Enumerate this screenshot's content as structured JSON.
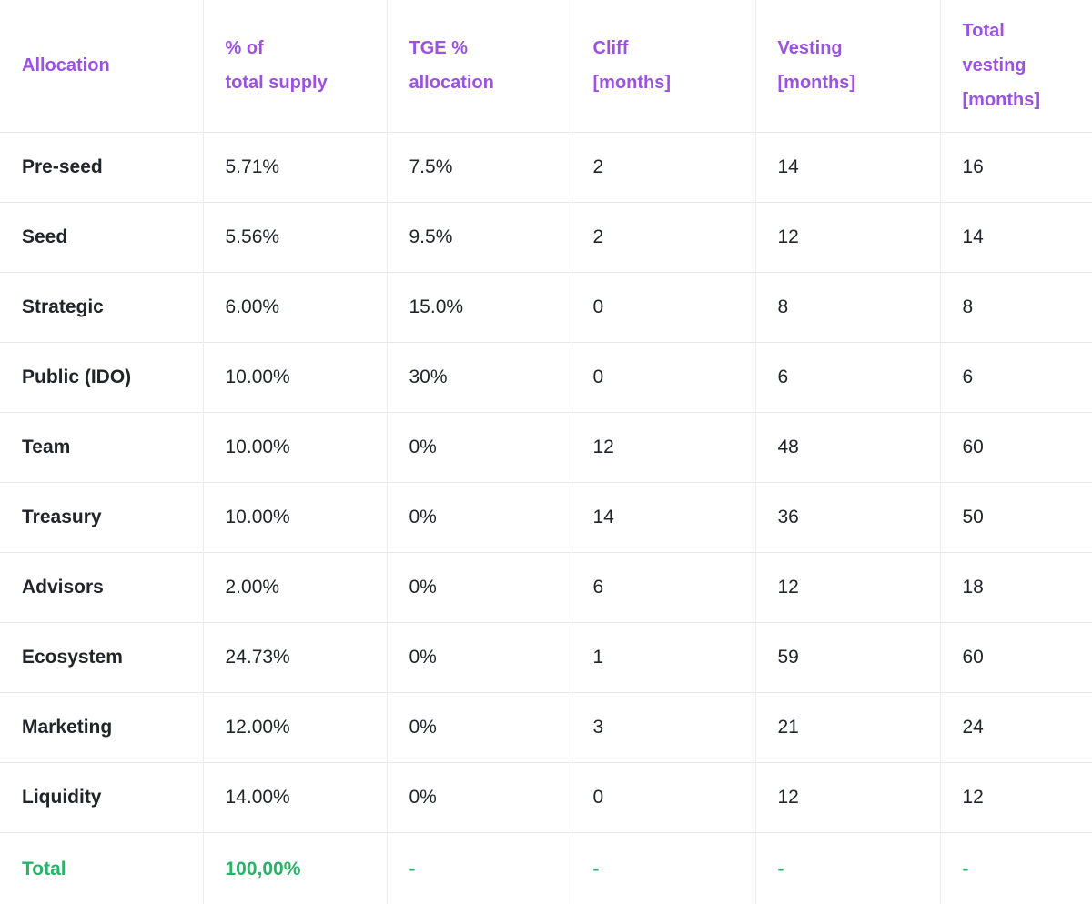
{
  "colors": {
    "header_text": "#9b52e1",
    "total_row_text": "#2cb168",
    "body_text": "#212529",
    "grid_horizontal": "#e6e8ea",
    "grid_vertical": "#ededef",
    "background": "#ffffff"
  },
  "table": {
    "columns": [
      {
        "id": "allocation",
        "lines": [
          "Allocation"
        ]
      },
      {
        "id": "pct-total-supply",
        "lines": [
          "% of",
          "total supply"
        ]
      },
      {
        "id": "tge-pct-allocation",
        "lines": [
          "TGE %",
          "allocation"
        ]
      },
      {
        "id": "cliff-months",
        "lines": [
          "Cliff",
          "[months]"
        ]
      },
      {
        "id": "vesting-months",
        "lines": [
          "Vesting",
          "[months]"
        ]
      },
      {
        "id": "total-vesting-months",
        "lines": [
          "Total",
          "vesting",
          "[months]"
        ]
      }
    ],
    "rows": [
      [
        "Pre-seed",
        "5.71%",
        "7.5%",
        "2",
        "14",
        "16"
      ],
      [
        "Seed",
        "5.56%",
        "9.5%",
        "2",
        "12",
        "14"
      ],
      [
        "Strategic",
        "6.00%",
        "15.0%",
        "0",
        "8",
        "8"
      ],
      [
        "Public (IDO)",
        "10.00%",
        "30%",
        "0",
        "6",
        "6"
      ],
      [
        "Team",
        "10.00%",
        "0%",
        "12",
        "48",
        "60"
      ],
      [
        "Treasury",
        "10.00%",
        "0%",
        "14",
        "36",
        "50"
      ],
      [
        "Advisors",
        "2.00%",
        "0%",
        "6",
        "12",
        "18"
      ],
      [
        "Ecosystem",
        "24.73%",
        "0%",
        "1",
        "59",
        "60"
      ],
      [
        "Marketing",
        "12.00%",
        "0%",
        "3",
        "21",
        "24"
      ],
      [
        "Liquidity",
        "14.00%",
        "0%",
        "0",
        "12",
        "12"
      ]
    ],
    "total_row": [
      "Total",
      "100,00%",
      "-",
      "-",
      "-",
      "-"
    ]
  }
}
